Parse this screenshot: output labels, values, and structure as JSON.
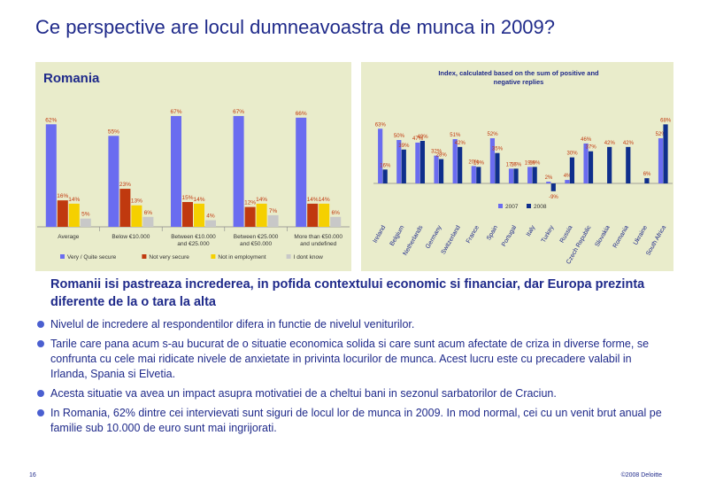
{
  "page": {
    "title": "Ce perspective are locul dumneavoastra de munca in 2009?",
    "subheading": "Romanii isi pastreaza increderea, in pofida contextului economic si financiar, dar Europa prezinta diferente de la o tara la alta",
    "bullets": [
      "Nivelul de incredere al respondentilor difera in functie de nivelul veniturilor.",
      "Tarile care pana acum s-au bucurat de o situatie economica solida si care sunt acum afectate de criza in diverse forme, se confrunta cu cele mai ridicate nivele de anxietate in privinta locurilor de munca. Acest lucru este cu precadere valabil in Irlanda, Spania si Elvetia.",
      "Acesta situatie va avea un impact asupra motivatiei de a cheltui bani in sezonul sarbatorilor de Craciun.",
      "In Romania, 62% dintre cei intervievati sunt siguri de locul lor de munca in 2009. In mod normal, cei cu un venit brut anual pe familie sub 10.000 de euro  sunt mai ingrijorati."
    ],
    "page_number": "16",
    "copyright": "©2008 Deloitte"
  },
  "colors": {
    "title": "#1f2a8a",
    "panel_bg": "#e9eccb",
    "very_secure": "#6a6cf0",
    "not_very_secure": "#c0390f",
    "not_in_employment": "#f5d000",
    "dont_know": "#c8c8c8",
    "y2007": "#6a6cf0",
    "y2008": "#0f2f8c"
  },
  "chart_data": [
    {
      "type": "bar",
      "title": "Romania",
      "categories": [
        "Average",
        "Below €10.000",
        "Between €10.000 and €25.000",
        "Between €25.000 and €50.000",
        "More than €50.000"
      ],
      "series": [
        {
          "name": "Very / Quite secure",
          "values": [
            62,
            55,
            67,
            67,
            66
          ]
        },
        {
          "name": "Not very secure",
          "values": [
            16,
            23,
            15,
            12,
            14
          ]
        },
        {
          "name": "Not in employment",
          "values": [
            14,
            13,
            14,
            14,
            14
          ]
        },
        {
          "name": "I dont know",
          "values": [
            5,
            6,
            4,
            7,
            6
          ]
        }
      ],
      "ylim": [
        0,
        75
      ],
      "legend": "bottom"
    },
    {
      "type": "bar",
      "title": "Index, calculated based on the sum of positive and negative replies",
      "categories": [
        "Ireland",
        "Belgium",
        "Netherlands",
        "Germany",
        "Switzerland",
        "France",
        "Spain",
        "Portugal",
        "Italy",
        "Turkey",
        "Russia",
        "Czech Republic",
        "Slovakia",
        "Romania",
        "Ukraine",
        "South Africa"
      ],
      "series": [
        {
          "name": "2007",
          "values": [
            63,
            50,
            47,
            32,
            51,
            20,
            52,
            17,
            19,
            2,
            4,
            46,
            null,
            null,
            null,
            52
          ]
        },
        {
          "name": "2008",
          "values": [
            16,
            39,
            49,
            28,
            42,
            19,
            35,
            17,
            19,
            -9,
            30,
            37,
            42,
            42,
            6,
            68
          ]
        }
      ],
      "ylim": [
        -15,
        75
      ],
      "legend": "bottom"
    }
  ]
}
